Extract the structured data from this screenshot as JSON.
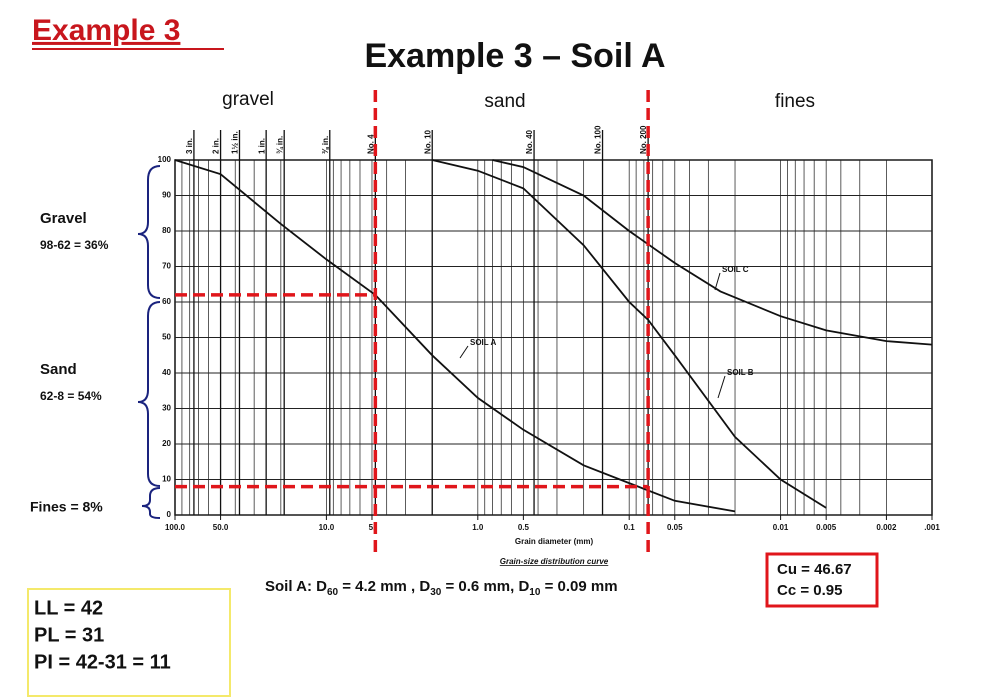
{
  "slide": {
    "heading": "Example 3",
    "regions": [
      "gravel",
      "sand",
      "fines"
    ],
    "brace_labels": [
      {
        "name": "Gravel",
        "detail": "98-62 = 36%"
      },
      {
        "name": "Sand",
        "detail": "62-8 = 54%"
      },
      {
        "name": "Fines = 8%"
      }
    ],
    "summary": [
      "Soil A:  D",
      "60",
      " = 4.2 mm , D",
      "30",
      " = 0.6 mm, D",
      "10",
      " = 0.09 mm"
    ],
    "coefficients": [
      "Cu = 46.67",
      "Cc = 0.95"
    ],
    "limits": [
      "LL = 42",
      "PL = 31",
      "PI = 42-31 = 11"
    ]
  },
  "chart_data": {
    "type": "line",
    "title": "Example 3 – Soil A",
    "x_label": "Grain diameter (mm)",
    "caption": "Grain-size distribution curve",
    "x_scale": "log",
    "xlim": [
      100,
      0.001
    ],
    "xticks": [
      {
        "value": 100,
        "label": "100.0"
      },
      {
        "value": 50,
        "label": "50.0"
      },
      {
        "value": 10,
        "label": "10.0"
      },
      {
        "value": 5,
        "label": "5."
      },
      {
        "value": 1,
        "label": "1.0"
      },
      {
        "value": 0.5,
        "label": "0.5"
      },
      {
        "value": 0.1,
        "label": "0.1"
      },
      {
        "value": 0.05,
        "label": "0.05"
      },
      {
        "value": 0.01,
        "label": "0.01"
      },
      {
        "value": 0.005,
        "label": "0.005"
      },
      {
        "value": 0.002,
        "label": "0.002"
      },
      {
        "value": 0.001,
        "label": ".001"
      }
    ],
    "ylim": [
      0,
      100
    ],
    "yticks": [
      0,
      10,
      20,
      30,
      40,
      50,
      60,
      70,
      80,
      90,
      100
    ],
    "grid": true,
    "sieves": [
      {
        "value": 75,
        "label": "3 in."
      },
      {
        "value": 50,
        "label": "2 in."
      },
      {
        "value": 37.5,
        "label": "1½ in."
      },
      {
        "value": 25,
        "label": "1 in."
      },
      {
        "value": 19,
        "label": "¾ in."
      },
      {
        "value": 9.5,
        "label": "⅜ in."
      },
      {
        "value": 4.75,
        "label": "No. 4"
      },
      {
        "value": 2,
        "label": "No. 10"
      },
      {
        "value": 0.425,
        "label": "No. 40"
      },
      {
        "value": 0.15,
        "label": "No. 100"
      },
      {
        "value": 0.075,
        "label": "No. 200"
      }
    ],
    "dashed_x": [
      4.75,
      0.075
    ],
    "dashed_y": [
      62,
      8
    ],
    "dash_color": "#e0161b",
    "series": [
      {
        "name": "SOIL A",
        "color": "#111111",
        "x": [
          100,
          50,
          20,
          10,
          4.75,
          2,
          1,
          0.5,
          0.2,
          0.1,
          0.05,
          0.02
        ],
        "values": [
          100,
          96,
          82,
          72,
          62,
          45,
          33,
          24,
          14,
          9,
          4,
          1
        ]
      },
      {
        "name": "SOIL B",
        "color": "#111111",
        "x": [
          2,
          1,
          0.5,
          0.2,
          0.1,
          0.075,
          0.05,
          0.02,
          0.01,
          0.005
        ],
        "values": [
          100,
          97,
          92,
          76,
          60,
          55,
          45,
          22,
          10,
          2
        ]
      },
      {
        "name": "SOIL C",
        "color": "#111111",
        "x": [
          0.8,
          0.5,
          0.2,
          0.1,
          0.05,
          0.025,
          0.01,
          0.005,
          0.002,
          0.001
        ],
        "values": [
          100,
          98,
          90,
          80,
          71,
          63,
          56,
          52,
          49,
          48
        ]
      }
    ]
  }
}
